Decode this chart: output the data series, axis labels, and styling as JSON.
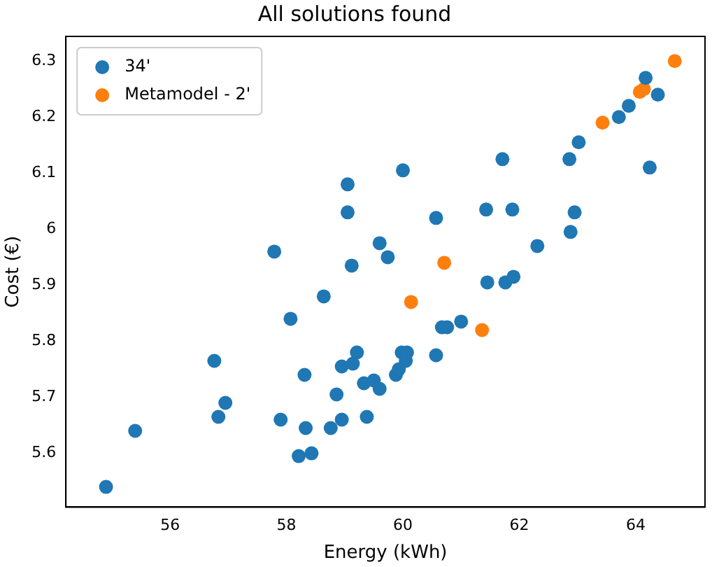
{
  "chart_data": {
    "type": "scatter",
    "title": "All solutions found",
    "xlabel": "Energy (kWh)",
    "ylabel": "Cost (€)",
    "xlim": [
      54.21,
      65.19
    ],
    "xticks": [
      56,
      58,
      60,
      62,
      64
    ],
    "ylim": [
      5.504,
      6.344
    ],
    "yticks": [
      5.6,
      5.7,
      5.8,
      5.9,
      6.0,
      6.1,
      6.2,
      6.3
    ],
    "legend": "top left",
    "marker": "circle",
    "grid": false,
    "series": [
      {
        "name": "34'",
        "color": "#1f77b4",
        "x": [
          54.9,
          55.4,
          56.76,
          56.83,
          56.95,
          57.79,
          57.9,
          58.07,
          58.21,
          58.31,
          58.33,
          58.43,
          58.64,
          58.76,
          58.86,
          58.95,
          58.95,
          59.05,
          59.05,
          59.14,
          59.12,
          59.21,
          59.33,
          59.38,
          59.5,
          59.6,
          59.6,
          59.74,
          59.88,
          59.93,
          59.98,
          60.07,
          60.05,
          60.0,
          60.57,
          60.57,
          60.67,
          60.76,
          61.0,
          61.43,
          61.45,
          61.71,
          61.76,
          61.88,
          61.9,
          62.31,
          62.88,
          62.86,
          62.95,
          63.02,
          63.71,
          63.88,
          64.17,
          64.38,
          64.24
        ],
        "values": [
          5.54,
          5.64,
          5.765,
          5.665,
          5.69,
          5.96,
          5.66,
          5.84,
          5.595,
          5.74,
          5.645,
          5.6,
          5.88,
          5.645,
          5.705,
          5.66,
          5.755,
          6.08,
          6.03,
          5.76,
          5.935,
          5.78,
          5.725,
          5.665,
          5.73,
          5.975,
          5.715,
          5.95,
          5.74,
          5.75,
          5.78,
          5.78,
          5.765,
          6.105,
          5.775,
          6.02,
          5.825,
          5.825,
          5.835,
          6.035,
          5.905,
          6.125,
          5.905,
          6.035,
          5.915,
          5.97,
          5.995,
          6.125,
          6.03,
          6.155,
          6.2,
          6.22,
          6.27,
          6.24,
          6.11
        ]
      },
      {
        "name": "Metamodel - 2'",
        "color": "#ff7f0e",
        "x": [
          64.67,
          64.07,
          64.14,
          63.43,
          60.71,
          60.14,
          61.36
        ],
        "values": [
          6.3,
          6.245,
          6.25,
          6.19,
          5.94,
          5.87,
          5.82
        ]
      }
    ]
  }
}
